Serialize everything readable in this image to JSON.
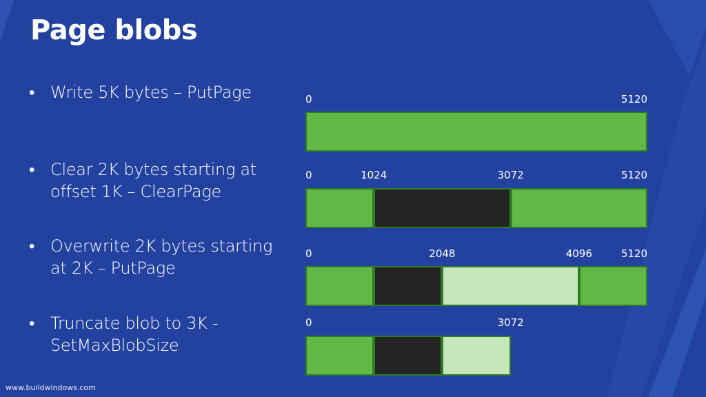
{
  "slide": {
    "title": "Page blobs",
    "footer": "www.buildwindows.com"
  },
  "bullets": [
    {
      "marker": "•",
      "text": "Write 5K bytes – PutPage"
    },
    {
      "marker": "•",
      "text": "Clear 2K bytes starting at offset 1K – ClearPage"
    },
    {
      "marker": "•",
      "text": "Overwrite 2K bytes starting at 2K – PutPage"
    },
    {
      "marker": "•",
      "text": "Truncate blob to 3K - SetMaxBlobSize"
    }
  ],
  "colors": {
    "background": "#2342a0",
    "written": "#62b847",
    "cleared": "#232323",
    "overwritten": "#c5e5bb",
    "segment_border": "#2e7d23"
  },
  "chart_data": {
    "type": "diagram",
    "rows": [
      {
        "ticks": [
          "0",
          "5120"
        ],
        "segments": [
          {
            "start": 0,
            "end": 5120,
            "state": "written"
          }
        ]
      },
      {
        "ticks": [
          "0",
          "1024",
          "3072",
          "5120"
        ],
        "segments": [
          {
            "start": 0,
            "end": 1024,
            "state": "written"
          },
          {
            "start": 1024,
            "end": 3072,
            "state": "cleared"
          },
          {
            "start": 3072,
            "end": 5120,
            "state": "written"
          }
        ]
      },
      {
        "ticks": [
          "0",
          "2048",
          "4096",
          "5120"
        ],
        "segments": [
          {
            "start": 0,
            "end": 1024,
            "state": "written"
          },
          {
            "start": 1024,
            "end": 2048,
            "state": "cleared"
          },
          {
            "start": 2048,
            "end": 4096,
            "state": "overwritten"
          },
          {
            "start": 4096,
            "end": 5120,
            "state": "written"
          }
        ]
      },
      {
        "ticks": [
          "0",
          "3072"
        ],
        "segments": [
          {
            "start": 0,
            "end": 1024,
            "state": "written"
          },
          {
            "start": 1024,
            "end": 2048,
            "state": "cleared"
          },
          {
            "start": 2048,
            "end": 3072,
            "state": "overwritten"
          }
        ]
      }
    ]
  }
}
